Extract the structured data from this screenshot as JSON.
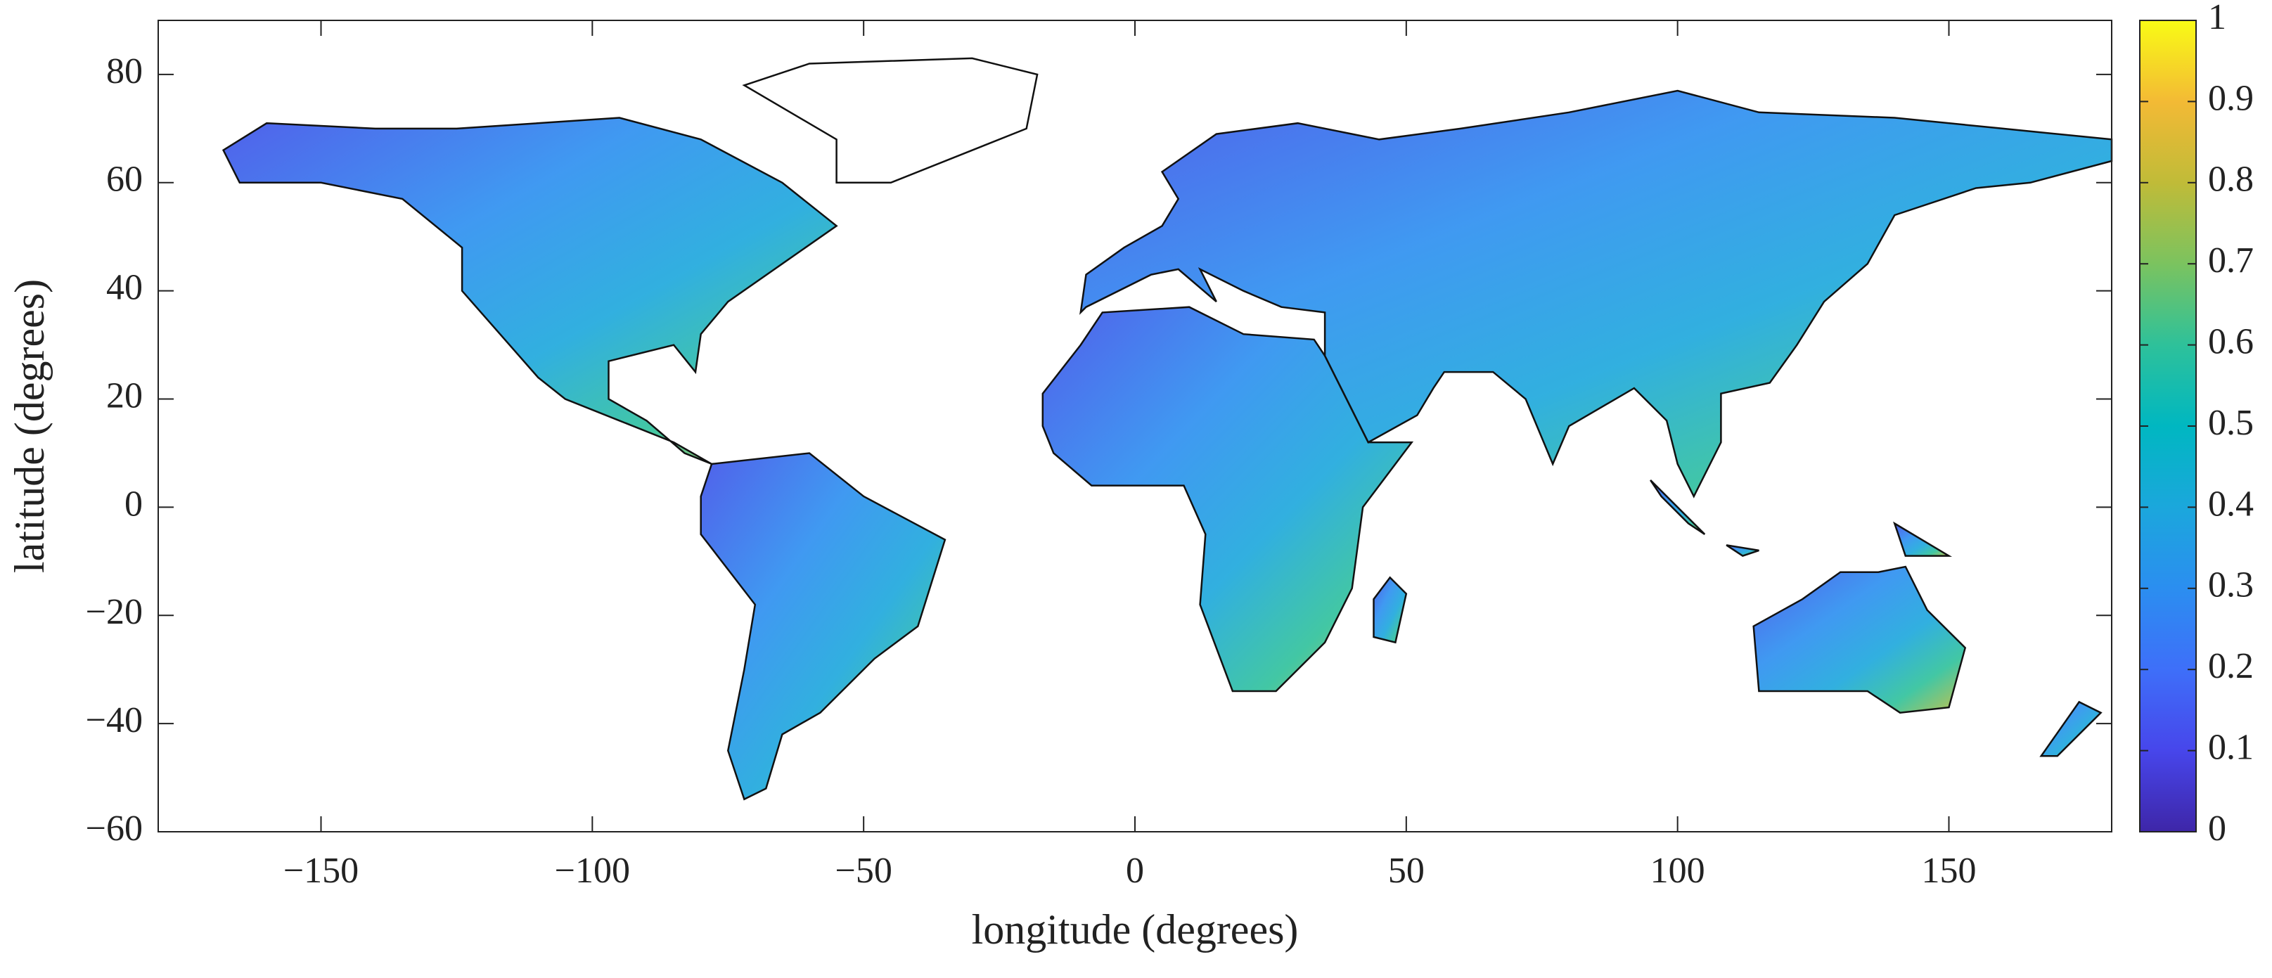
{
  "chart_data": {
    "type": "map",
    "xlabel": "longitude (degrees)",
    "ylabel": "latitude (degrees)",
    "xlim": [
      -180,
      180
    ],
    "ylim": [
      -60,
      90
    ],
    "xticks": [
      {
        "value": -150,
        "label": "−150"
      },
      {
        "value": -100,
        "label": "−100"
      },
      {
        "value": -50,
        "label": "−50"
      },
      0,
      50,
      100,
      150
    ],
    "yticks": [
      {
        "value": -60,
        "label": "−60"
      },
      {
        "value": -40,
        "label": "−40"
      },
      {
        "value": -20,
        "label": "−20"
      },
      0,
      20,
      40,
      60,
      80
    ],
    "colorbar": {
      "clim": [
        0,
        1
      ],
      "ticks": [
        0,
        0.1,
        0.2,
        0.3,
        0.4,
        0.5,
        0.6,
        0.7,
        0.8,
        0.9,
        1
      ],
      "colormap": [
        "#3e26a8",
        "#4746eb",
        "#3e6ff9",
        "#2b8ef0",
        "#1ba7dc",
        "#00b7c1",
        "#2ec19a",
        "#7bc35f",
        "#c0bb38",
        "#f3ba35",
        "#f9fb15"
      ]
    }
  }
}
